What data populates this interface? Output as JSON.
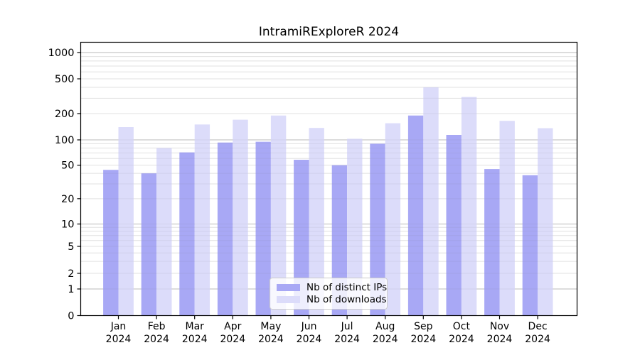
{
  "chart_data": {
    "type": "bar",
    "title": "IntramiRExploreR 2024",
    "categories": [
      "Jan 2024",
      "Feb 2024",
      "Mar 2024",
      "Apr 2024",
      "May 2024",
      "Jun 2024",
      "Jul 2024",
      "Aug 2024",
      "Sep 2024",
      "Oct 2024",
      "Nov 2024",
      "Dec 2024"
    ],
    "series": [
      {
        "name": "Nb of distinct IPs",
        "color": "#a8a8f5",
        "values": [
          44,
          40,
          71,
          93,
          95,
          58,
          50,
          90,
          190,
          114,
          45,
          38
        ]
      },
      {
        "name": "Nb of downloads",
        "color": "#dcdcfa",
        "values": [
          140,
          80,
          150,
          170,
          190,
          137,
          103,
          155,
          400,
          310,
          165,
          136
        ]
      }
    ],
    "yticks": [
      0,
      1,
      2,
      5,
      10,
      20,
      50,
      100,
      200,
      500,
      1000
    ],
    "yscale": "log (linear below 1, zero shown)",
    "ylim": [
      0,
      1300
    ],
    "grid": true,
    "legend_position": "lower center",
    "colors": {
      "major_grid": "#c0c0c0",
      "minor_grid": "#ededed",
      "spine": "#000000",
      "text": "#000000"
    }
  }
}
